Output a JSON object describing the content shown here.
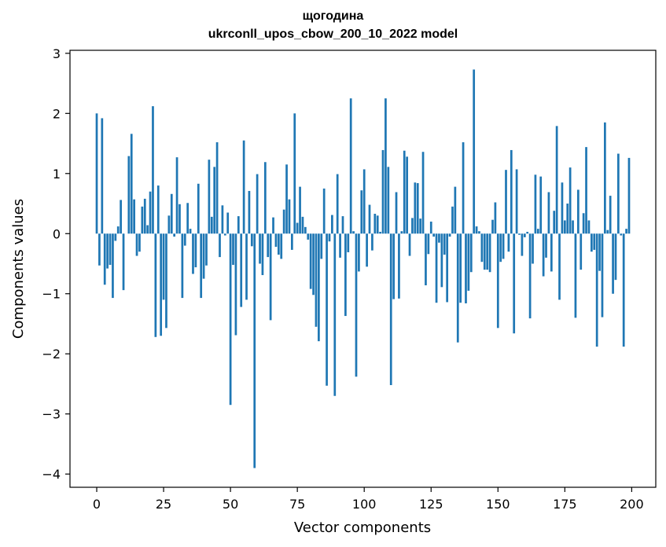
{
  "chart_data": {
    "type": "bar",
    "title_line1": "щогодина",
    "title_line2": "ukrconll_upos_cbow_200_10_2022 model",
    "xlabel": "Vector components",
    "ylabel": "Components values",
    "xlim": [
      -10,
      209
    ],
    "ylim": [
      -4.22,
      3.05
    ],
    "xticks": [
      0,
      25,
      50,
      75,
      100,
      125,
      150,
      175,
      200
    ],
    "xtick_labels": [
      "0",
      "25",
      "50",
      "75",
      "100",
      "125",
      "150",
      "175",
      "200"
    ],
    "yticks": [
      -4,
      -3,
      -2,
      -1,
      0,
      1,
      2,
      3
    ],
    "ytick_labels": [
      "−4",
      "−3",
      "−2",
      "−1",
      "0",
      "1",
      "2",
      "3"
    ],
    "bar_color": "#1f77b4",
    "grid": false,
    "values": [
      2.0,
      -0.53,
      1.92,
      -0.85,
      -0.58,
      -0.52,
      -1.07,
      -0.12,
      0.12,
      0.56,
      -0.94,
      0.0,
      1.29,
      1.66,
      0.57,
      -0.37,
      -0.3,
      0.45,
      0.58,
      0.14,
      0.7,
      2.12,
      -1.72,
      0.8,
      -1.7,
      -1.1,
      -1.57,
      0.3,
      0.66,
      -0.05,
      1.27,
      0.49,
      -1.07,
      -0.2,
      0.51,
      0.08,
      -0.67,
      -0.56,
      0.83,
      -1.07,
      -0.75,
      -0.53,
      1.23,
      0.28,
      1.11,
      1.52,
      -0.39,
      0.47,
      -0.03,
      0.35,
      -2.85,
      -0.52,
      -1.69,
      0.29,
      -1.22,
      1.55,
      -1.1,
      0.71,
      -0.21,
      -3.9,
      0.99,
      -0.5,
      -0.69,
      1.19,
      -0.39,
      -1.44,
      0.27,
      -0.22,
      -0.35,
      -0.42,
      0.4,
      1.15,
      0.57,
      -0.27,
      2.0,
      0.18,
      0.78,
      0.28,
      0.11,
      -0.1,
      -0.92,
      -1.02,
      -1.55,
      -1.79,
      -0.42,
      0.75,
      -2.53,
      -0.13,
      0.31,
      -2.7,
      0.99,
      -0.4,
      0.29,
      -1.37,
      -0.31,
      2.25,
      0.04,
      -2.38,
      -0.63,
      0.72,
      1.07,
      -0.55,
      0.48,
      -0.28,
      0.33,
      0.3,
      0.03,
      1.39,
      2.25,
      1.11,
      -2.52,
      -1.09,
      0.69,
      -1.08,
      0.04,
      1.38,
      1.28,
      -0.37,
      0.26,
      0.85,
      0.84,
      0.25,
      1.36,
      -0.86,
      -0.34,
      0.2,
      -0.05,
      -1.15,
      -0.15,
      -0.89,
      -0.35,
      -1.14,
      -0.05,
      0.45,
      0.78,
      -1.81,
      -1.15,
      1.52,
      -1.16,
      -0.95,
      -0.64,
      2.73,
      0.12,
      0.04,
      -0.47,
      -0.6,
      -0.6,
      -0.64,
      0.23,
      0.52,
      -1.57,
      -0.47,
      -0.42,
      1.06,
      -0.3,
      1.39,
      -1.66,
      1.07,
      -0.02,
      -0.37,
      -0.06,
      0.03,
      -1.41,
      -0.5,
      0.98,
      0.08,
      0.95,
      -0.71,
      -0.4,
      0.69,
      -0.63,
      0.38,
      1.79,
      -1.1,
      0.85,
      0.22,
      0.5,
      1.1,
      0.22,
      -1.4,
      0.73,
      -0.6,
      0.34,
      1.44,
      0.22,
      -0.3,
      -0.27,
      -1.88,
      -0.62,
      -1.39,
      1.85,
      0.06,
      0.63,
      -1.0,
      -0.77,
      1.33,
      -0.03,
      -1.88,
      0.08,
      1.26
    ]
  }
}
